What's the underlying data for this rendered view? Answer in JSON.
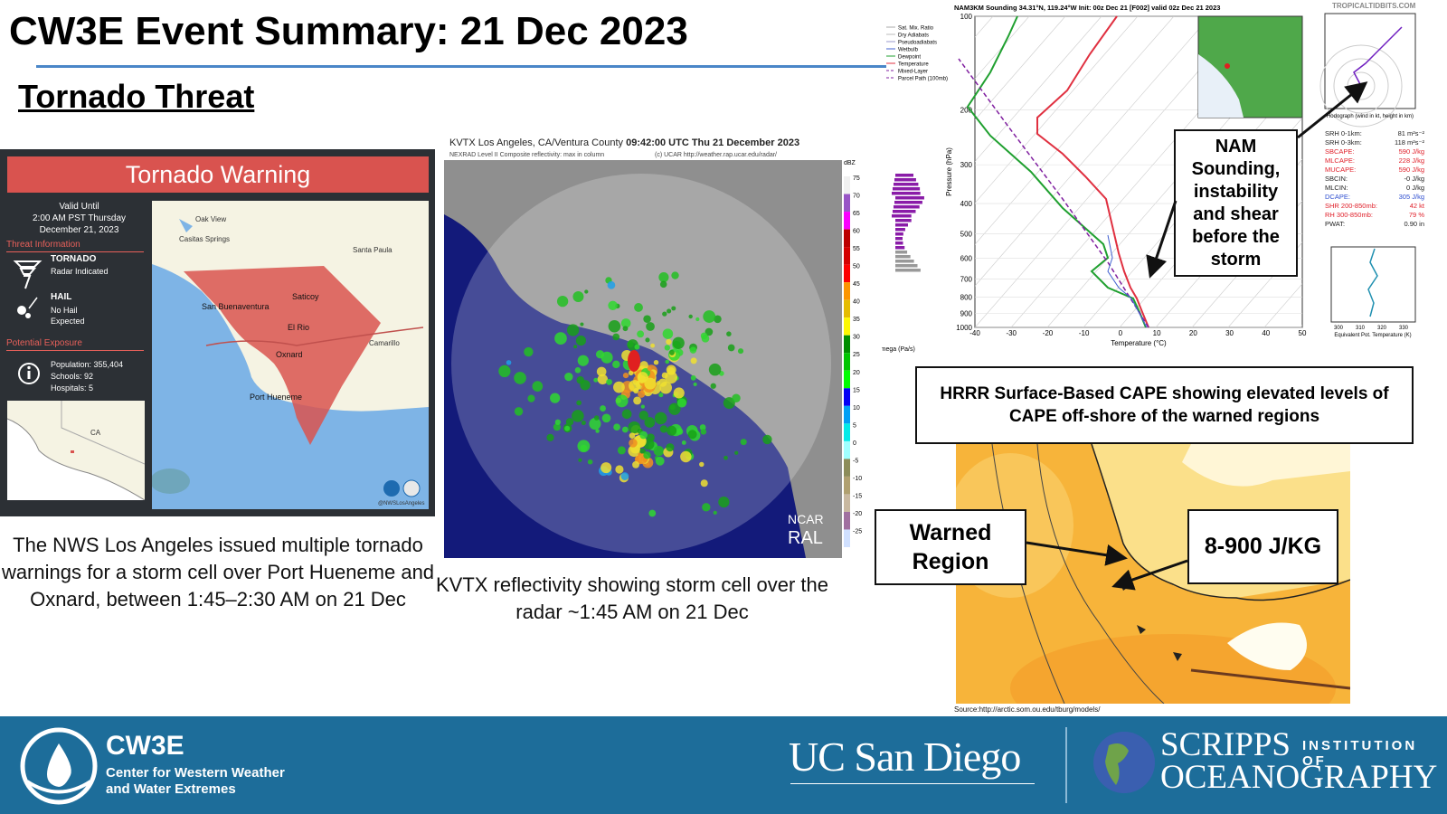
{
  "header": {
    "title": "CW3E Event Summary: 21 Dec 2023",
    "subtitle": "Tornado Threat"
  },
  "warning": {
    "title": "Tornado Warning",
    "valid": [
      "Valid Until",
      "2:00 AM PST Thursday",
      "December 21, 2023"
    ],
    "threat_heading": "Threat Information",
    "threats": [
      {
        "name": "TORNADO",
        "detail": "Radar Indicated"
      },
      {
        "name": "HAIL",
        "detail": "No Hail Expected"
      }
    ],
    "exposure_heading": "Potential Exposure",
    "exposure": [
      "Population: 355,404",
      "Schools: 92",
      "Hospitals: 5"
    ],
    "places": [
      "Oak View",
      "Casitas Springs",
      "Santa Paula",
      "Saticoy",
      "San Buenaventura",
      "El Rio",
      "Oxnard",
      "Camarillo",
      "Port Hueneme"
    ],
    "inset_label": "CA",
    "credit": "@NWSLosAngeles",
    "caption": "The NWS Los Angeles issued multiple tornado warnings for a storm cell over Port Hueneme and Oxnard, between 1:45–2:30 AM on 21 Dec"
  },
  "radar": {
    "title": "KVTX Los Angeles, CA/Ventura County",
    "time": "09:42:00 UTC Thu 21 December 2023",
    "product": "NEXRAD Level II Composite reflectivity: max in column",
    "credit": "(c) UCAR http://weather.rap.ucar.edu/radar/",
    "unit": "dBZ",
    "scale": [
      75,
      70,
      65,
      60,
      55,
      50,
      45,
      40,
      35,
      30,
      25,
      20,
      15,
      10,
      5,
      0,
      -5,
      -10,
      -15,
      -20,
      -25
    ],
    "logo": [
      "NCAR",
      "RAL"
    ],
    "caption": "KVTX reflectivity showing storm cell over the radar ~1:45 AM on 21 Dec"
  },
  "sounding": {
    "title": "NAM3KM Sounding 34.31°N, 119.24°W Init: 00z Dec 21 [F002] valid 02z Dec 21 2023",
    "site": "TROPICALTIDBITS.COM",
    "legend": [
      "Sat. Mix. Ratio",
      "Dry Adiabats",
      "Pseudoadiabats",
      "Wetbulb",
      "Dewpoint",
      "Temperature",
      "Mixed-Layer",
      "Parcel Path (100mb)"
    ],
    "pressure_label": "Pressure (hPa)",
    "pressures": [
      100,
      200,
      300,
      400,
      500,
      600,
      700,
      800,
      900,
      1000
    ],
    "temperature_label": "Temperature (°C)",
    "temperatures": [
      -40,
      -30,
      -20,
      -10,
      0,
      10,
      20,
      30,
      40,
      50
    ],
    "omega_label": "Omega (Pa/s)",
    "hodograph_label": "Hodograph (wind in kt, height in km)",
    "indices": [
      {
        "label": "SRH 0-1km:",
        "value": "81 m²s⁻²",
        "color": "#222222"
      },
      {
        "label": "SRH 0-3km:",
        "value": "118 m²s⁻²",
        "color": "#222222"
      },
      {
        "label": "SBCAPE:",
        "value": "590 J/kg",
        "color": "#e0202a"
      },
      {
        "label": "MLCAPE:",
        "value": "228 J/kg",
        "color": "#e0202a"
      },
      {
        "label": "MUCAPE:",
        "value": "590 J/kg",
        "color": "#e0202a"
      },
      {
        "label": "SBCIN:",
        "value": "-0 J/kg",
        "color": "#222222"
      },
      {
        "label": "MLCIN:",
        "value": "0 J/kg",
        "color": "#222222"
      },
      {
        "label": "DCAPE:",
        "value": "305 J/kg",
        "color": "#3050d0"
      },
      {
        "label": "SHR 200-850mb:",
        "value": "42 kt",
        "color": "#e0202a"
      },
      {
        "label": "RH 300-850mb:",
        "value": "79 %",
        "color": "#e0202a"
      },
      {
        "label": "PWAT:",
        "value": "0.90 in",
        "color": "#222222"
      }
    ],
    "theta_label": "Equivalent Pot. Temperature (K)",
    "theta_ticks": [
      300,
      310,
      320,
      330
    ],
    "callout": "NAM Sounding, instability and shear before the storm"
  },
  "cape": {
    "callout": "HRRR Surface-Based CAPE showing elevated levels of CAPE off-shore of the warned regions",
    "warned": "Warned Region",
    "value": "8-900 J/KG",
    "source": "Source:http://arctic.som.ou.edu/tburg/models/"
  },
  "footer": {
    "cw3e": "CW3E",
    "cw3e_name": [
      "Center for Western Weather",
      "and Water Extremes"
    ],
    "ucsd": "UC San Diego",
    "scripps": [
      "SCRIPPS",
      "INSTITUTION OF",
      "OCEANOGRAPHY"
    ]
  }
}
